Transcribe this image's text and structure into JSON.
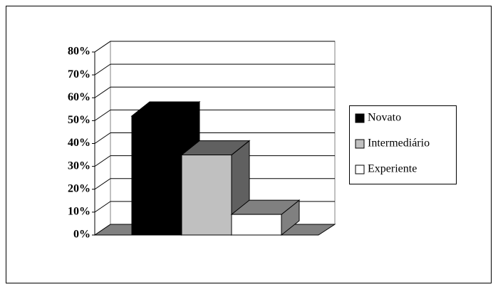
{
  "chart_data": {
    "type": "bar3d",
    "categories": [
      null
    ],
    "series": [
      {
        "name": "Novato",
        "color": "#000000",
        "side_color": "#000000",
        "values": [
          52
        ]
      },
      {
        "name": "Intermediário",
        "color": "#c0c0c0",
        "side_color": "#606060",
        "values": [
          35
        ]
      },
      {
        "name": "Experiente",
        "color": "#ffffff",
        "side_color": "#808080",
        "values": [
          9
        ]
      }
    ],
    "ylim": [
      0,
      80
    ],
    "yticks": [
      {
        "value": 0,
        "label": "0%"
      },
      {
        "value": 10,
        "label": "10%"
      },
      {
        "value": 20,
        "label": "20%"
      },
      {
        "value": 30,
        "label": "30%"
      },
      {
        "value": 40,
        "label": "40%"
      },
      {
        "value": 50,
        "label": "50%"
      },
      {
        "value": 60,
        "label": "60%"
      },
      {
        "value": 70,
        "label": "70%"
      },
      {
        "value": 80,
        "label": "80%"
      }
    ],
    "grid": true,
    "legend": "right"
  }
}
